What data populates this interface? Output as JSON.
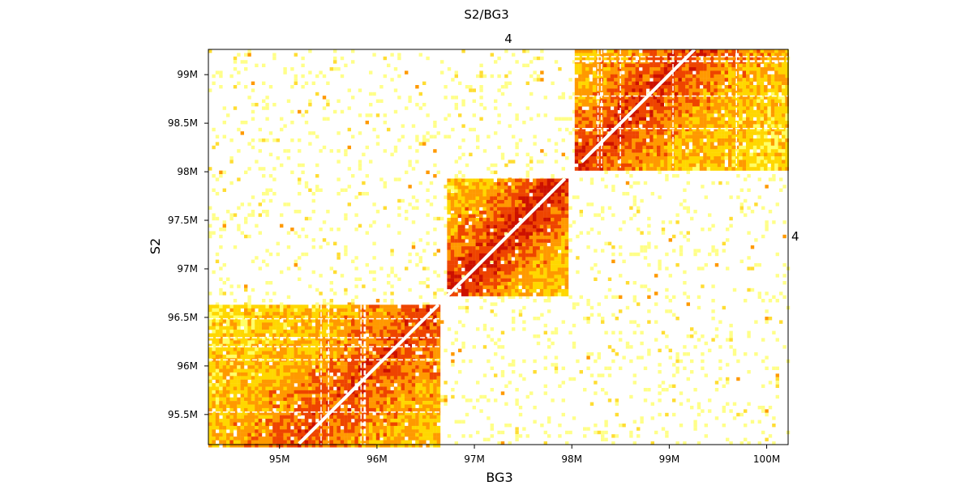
{
  "chart_data": {
    "type": "heatmap",
    "title": "S2/BG3",
    "xlabel": "BG3",
    "ylabel": "S2",
    "top_label": "4",
    "right_label": "4",
    "xlim": [
      94.27,
      100.22
    ],
    "ylim": [
      95.19,
      99.26
    ],
    "x_ticks": [
      {
        "value": 95,
        "label": "95M"
      },
      {
        "value": 96,
        "label": "96M"
      },
      {
        "value": 97,
        "label": "97M"
      },
      {
        "value": 98,
        "label": "98M"
      },
      {
        "value": 99,
        "label": "99M"
      },
      {
        "value": 100,
        "label": "100M"
      }
    ],
    "y_ticks": [
      {
        "value": 95.5,
        "label": "95.5M"
      },
      {
        "value": 96,
        "label": "96M"
      },
      {
        "value": 96.5,
        "label": "96.5M"
      },
      {
        "value": 97,
        "label": "97M"
      },
      {
        "value": 97.5,
        "label": "97.5M"
      },
      {
        "value": 98,
        "label": "98M"
      },
      {
        "value": 98.5,
        "label": "98.5M"
      },
      {
        "value": 99,
        "label": "99M"
      }
    ],
    "colormap": [
      "#ffffff",
      "#ffff66",
      "#ffd700",
      "#ff9900",
      "#ee4400",
      "#cc1100"
    ],
    "blocks": [
      {
        "name": "BG3 95.2M-96.6M x S2 95.2M-96.6M",
        "x": [
          94.27,
          96.65
        ],
        "y": [
          95.19,
          96.63
        ],
        "diag_x": [
          95.2,
          96.63
        ],
        "intensity": 0.55,
        "grid_lines": true
      },
      {
        "name": "BG3 96.7M-97.9M x S2 96.7M-97.9M",
        "x": [
          96.72,
          97.96
        ],
        "y": [
          96.72,
          97.93
        ],
        "diag_x": [
          96.72,
          97.93
        ],
        "intensity": 0.72,
        "grid_lines": false
      },
      {
        "name": "BG3 98.0M-100.2M x S2 98.0M-99.3M",
        "x": [
          98.03,
          100.22
        ],
        "y": [
          98.04,
          99.26
        ],
        "diag_x": [
          98.1,
          99.26
        ],
        "intensity": 0.6,
        "grid_lines": true
      }
    ],
    "background_noise": 0.12,
    "grid": false,
    "legend": "none"
  }
}
